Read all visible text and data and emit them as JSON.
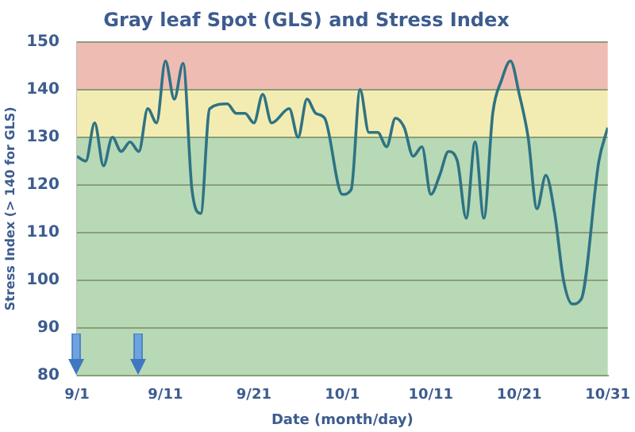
{
  "chart_data": {
    "type": "line",
    "title": "Gray leaf Spot (GLS) and Stress Index",
    "xlabel": "Date (month/day)",
    "ylabel": "Stress Index (> 140 for GLS)",
    "x": [
      "--09-01",
      "--09-02",
      "--09-03",
      "--09-04",
      "--09-05",
      "--09-06",
      "--09-07",
      "--09-08",
      "--09-09",
      "--09-10",
      "--09-11",
      "--09-12",
      "--09-13",
      "--09-14",
      "--09-15",
      "--09-16",
      "--09-18",
      "--09-19",
      "--09-20",
      "--09-21",
      "--09-22",
      "--09-23",
      "--09-25",
      "--09-26",
      "--09-27",
      "--09-28",
      "--09-29",
      "--10-01",
      "--10-02",
      "--10-03",
      "--10-04",
      "--10-05",
      "--10-06",
      "--10-07",
      "--10-08",
      "--10-09",
      "--10-10",
      "--10-11",
      "--10-12",
      "--10-13",
      "--10-14",
      "--10-15",
      "--10-16",
      "--10-17",
      "--10-18",
      "--10-19",
      "--10-20",
      "--10-21",
      "--10-22",
      "--10-23",
      "--10-24",
      "--10-25",
      "--10-26",
      "--10-27",
      "--10-28",
      "--10-30",
      "--10-31"
    ],
    "series": [
      {
        "color": "#2e7384",
        "values": [
          126,
          125,
          133,
          124,
          130,
          127,
          129,
          127,
          136,
          133,
          146,
          138,
          145.5,
          119,
          114,
          136,
          137,
          135,
          135,
          133,
          139,
          133,
          136,
          130,
          138,
          135,
          134,
          118,
          119,
          140,
          131,
          131,
          128,
          134,
          132,
          126,
          128,
          118,
          122,
          127,
          125,
          113,
          129,
          113,
          135,
          142,
          146,
          139,
          130,
          115,
          122,
          114,
          100,
          95,
          96,
          125,
          132
        ]
      }
    ],
    "xlim": [
      "--09-01",
      "--10-31"
    ],
    "xticks": [
      {
        "value": "--09-01",
        "label": "9/1"
      },
      {
        "value": "--09-11",
        "label": "9/11"
      },
      {
        "value": "--09-21",
        "label": "9/21"
      },
      {
        "value": "--10-01",
        "label": "10/1"
      },
      {
        "value": "--10-11",
        "label": "10/11"
      },
      {
        "value": "--10-21",
        "label": "10/21"
      },
      {
        "value": "--10-31",
        "label": "10/31"
      }
    ],
    "ylim": [
      80,
      150
    ],
    "yticks": [
      80,
      90,
      100,
      110,
      120,
      130,
      140,
      150
    ],
    "grid": "y",
    "legend": false,
    "marker": "none",
    "line_style": "solid",
    "bands": [
      {
        "axis": "y",
        "from": 80,
        "to": 130,
        "color": "#b8d9b6"
      },
      {
        "axis": "y",
        "from": 130,
        "to": 140,
        "color": "#f3ecb2"
      },
      {
        "axis": "y",
        "from": 140,
        "to": 150,
        "color": "#efbcb4"
      }
    ]
  }
}
